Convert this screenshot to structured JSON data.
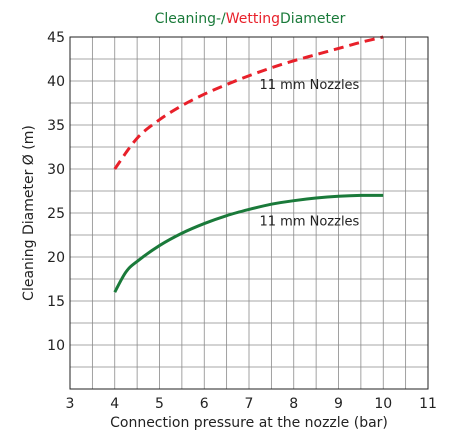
{
  "chart_data": {
    "type": "line",
    "title_parts": [
      {
        "text": "Cleaning-/",
        "color": "#1a7a3a"
      },
      {
        "text": "Wetting",
        "color": "#e8202a"
      },
      {
        "text": "Diameter",
        "color": "#1a7a3a"
      }
    ],
    "xlabel": "Connection pressure at the nozzle (bar)",
    "ylabel": "Cleaning Diameter Ø (m)",
    "xlim": [
      3,
      11
    ],
    "ylim": [
      5,
      45
    ],
    "xticks": [
      3,
      4,
      5,
      6,
      7,
      8,
      9,
      10,
      11
    ],
    "yticks": [
      10,
      15,
      20,
      25,
      30,
      35,
      40,
      45
    ],
    "grid": true,
    "series": [
      {
        "label": "11 mm Nozzles",
        "color": "#e8202a",
        "style": "dashed",
        "x": [
          4,
          4.5,
          5,
          5.5,
          6,
          6.5,
          7,
          7.5,
          8,
          8.5,
          9,
          9.5,
          10
        ],
        "y": [
          30,
          33.5,
          35.6,
          37.2,
          38.5,
          39.6,
          40.6,
          41.5,
          42.3,
          43.0,
          43.7,
          44.4,
          45
        ]
      },
      {
        "label": "11 mm Nozzles",
        "color": "#1a7a3a",
        "style": "solid",
        "x": [
          4,
          4.25,
          4.5,
          5,
          5.5,
          6,
          6.5,
          7,
          7.5,
          8,
          8.5,
          9,
          9.5,
          10
        ],
        "y": [
          16,
          18.3,
          19.5,
          21.3,
          22.7,
          23.8,
          24.7,
          25.4,
          26.0,
          26.4,
          26.7,
          26.9,
          27.0,
          27.0
        ]
      }
    ],
    "annotations": [
      {
        "text": "11 mm Nozzles",
        "x": 8.35,
        "y": 39.1
      },
      {
        "text": "11 mm Nozzles",
        "x": 8.35,
        "y": 23.6
      }
    ]
  }
}
